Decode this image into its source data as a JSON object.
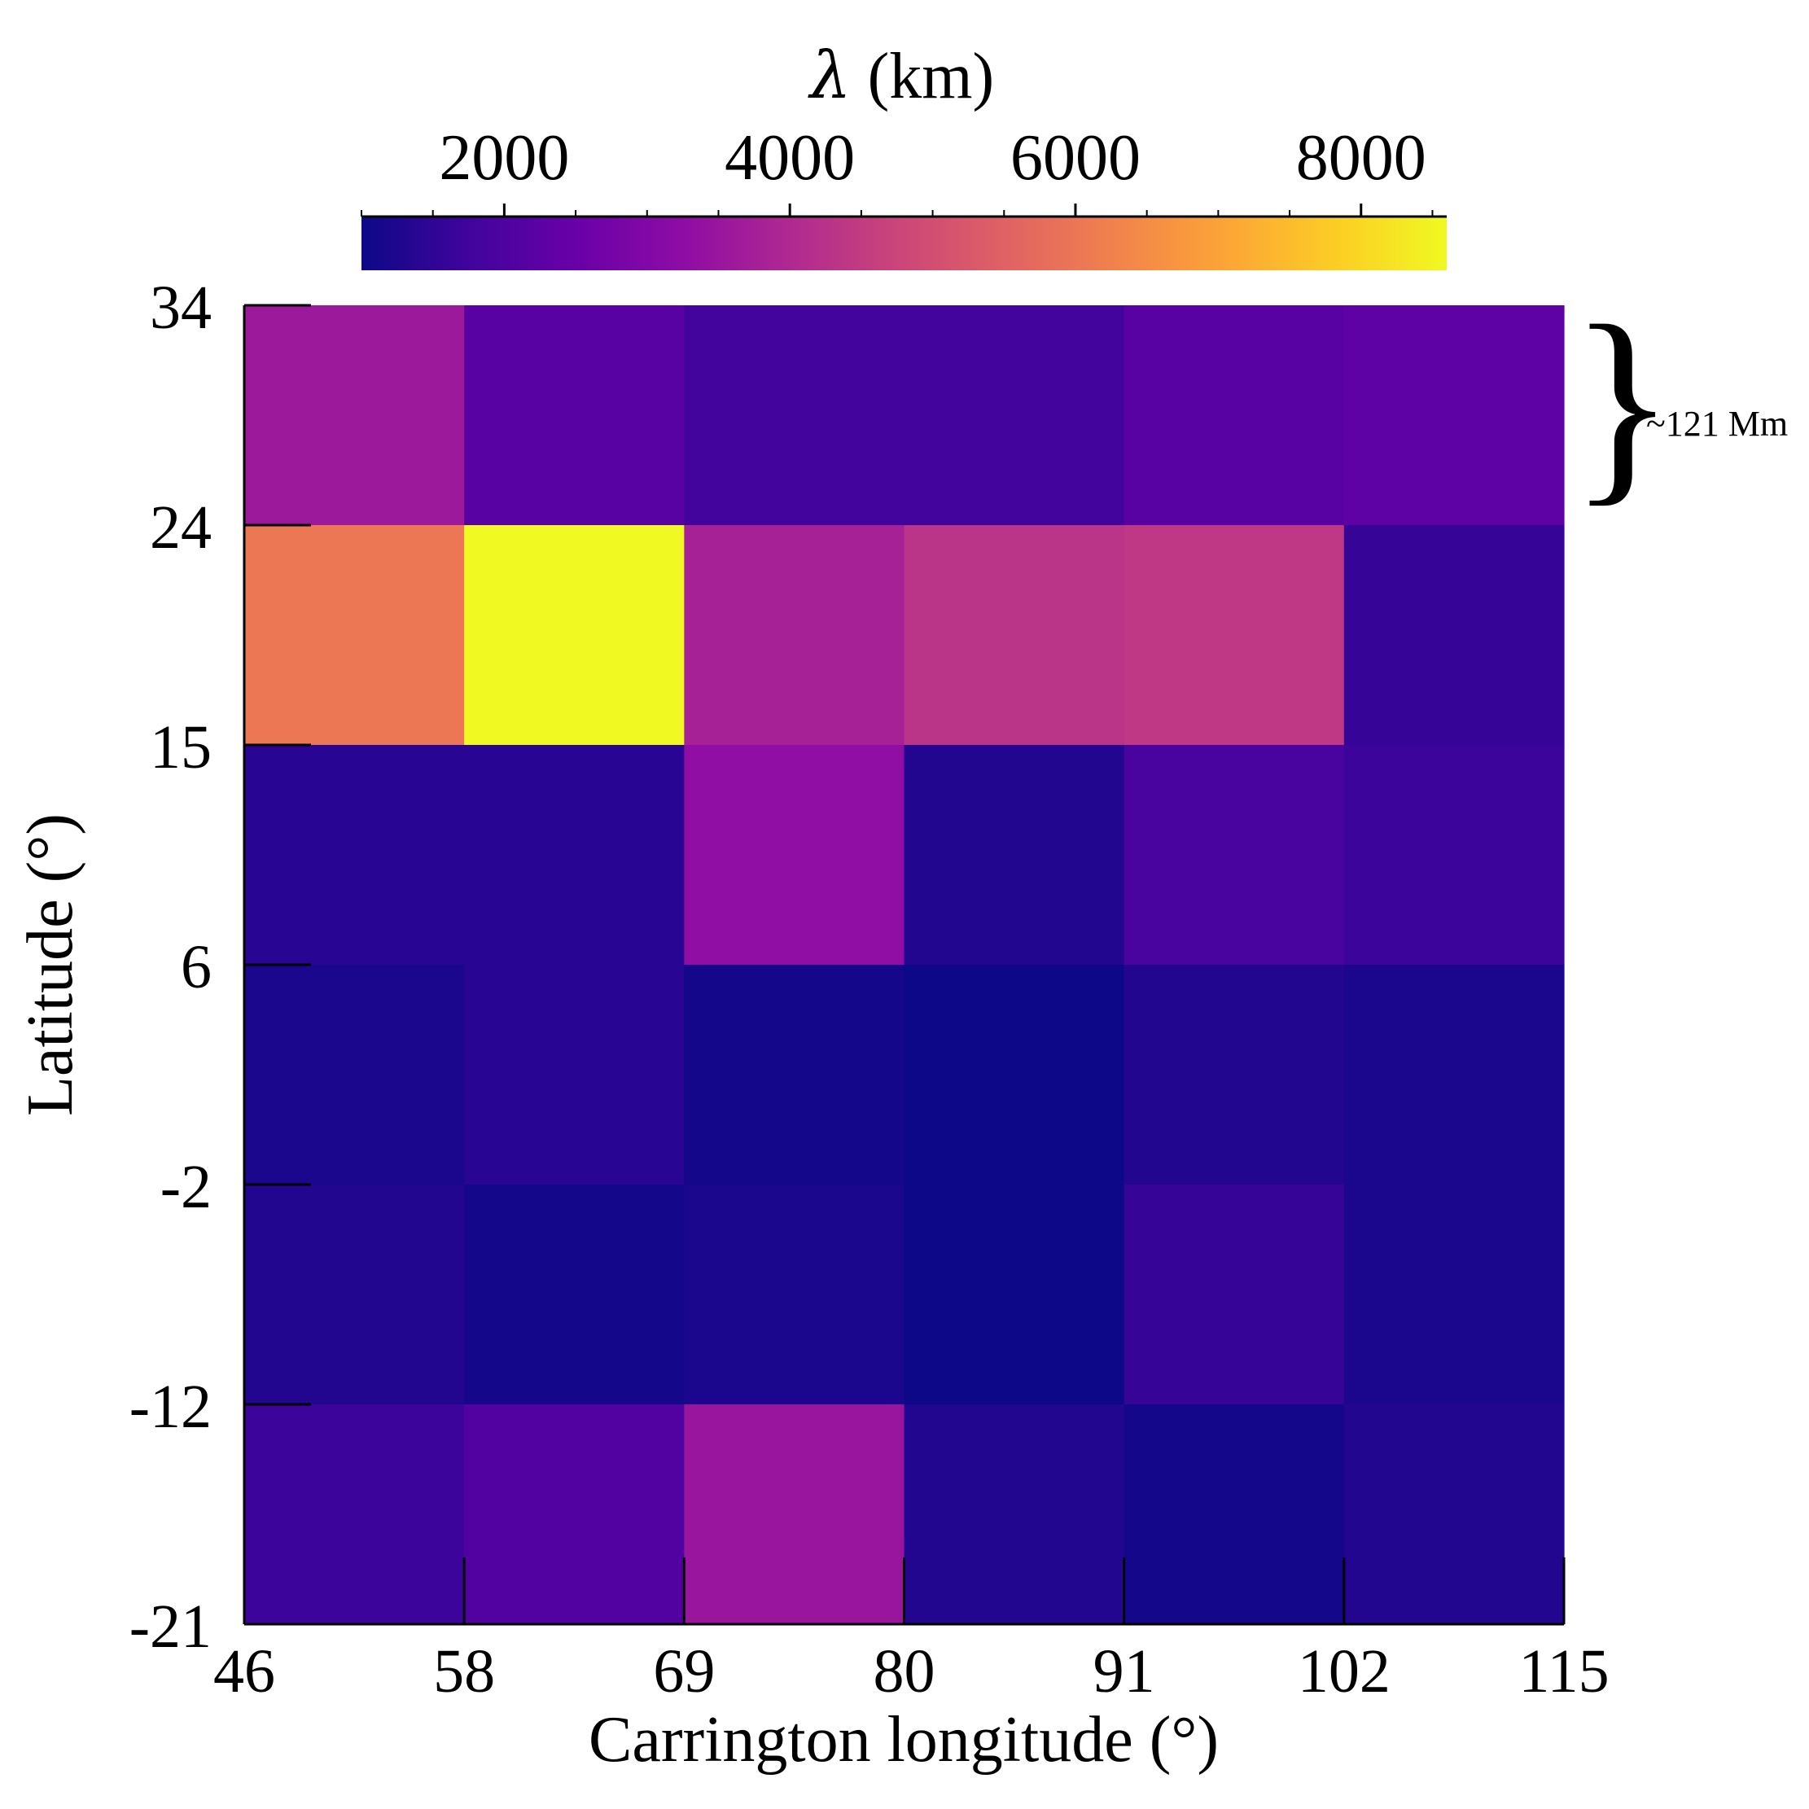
{
  "chart_data": {
    "type": "heatmap",
    "title": "",
    "xlabel": "Carrington longitude (°)",
    "ylabel": "Latitude (°)",
    "x_edges": [
      46,
      58,
      69,
      80,
      91,
      102,
      115
    ],
    "y_edges": [
      34,
      24,
      15,
      6,
      -2,
      -12,
      -21
    ],
    "x_tick_labels": [
      "46",
      "58",
      "69",
      "80",
      "91",
      "102",
      "115"
    ],
    "y_tick_labels": [
      "34",
      "24",
      "15",
      "6",
      "-2",
      "-12",
      "-21"
    ],
    "colorbar": {
      "label_symbol": "λ",
      "label_unit": " (km)",
      "colormap": "plasma",
      "range": [
        1000,
        8600
      ],
      "ticks": [
        2000,
        4000,
        6000,
        8000
      ],
      "tick_labels": [
        "2000",
        "4000",
        "6000",
        "8000"
      ],
      "minor_step": 500
    },
    "rows_top_to_bottom": [
      [
        3600,
        2200,
        1800,
        1800,
        2200,
        2300
      ],
      [
        6000,
        8600,
        3800,
        4300,
        4400,
        1600
      ],
      [
        1400,
        1400,
        3300,
        1300,
        1900,
        1700
      ],
      [
        1200,
        1400,
        1100,
        1000,
        1300,
        1200
      ],
      [
        1300,
        1100,
        1200,
        1000,
        1600,
        1200
      ],
      [
        1700,
        2100,
        3500,
        1300,
        1100,
        1300
      ]
    ],
    "annotation": "~121 Mm"
  }
}
